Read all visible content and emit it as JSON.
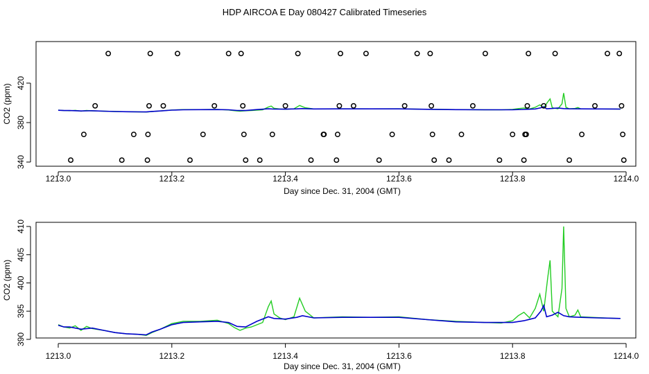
{
  "title": "HDP AIRCOA E  Day 080427  Calibrated Timeseries",
  "colors": {
    "green": "#22cc22",
    "blue": "#0000cc",
    "axis": "#000000"
  },
  "chart_data": [
    {
      "type": "line+scatter",
      "xlabel": "Day since Dec. 31, 2004 (GMT)",
      "ylabel": "CO2 (ppm)",
      "xlim": [
        1213.0,
        1214.0
      ],
      "ylim": [
        340,
        445
      ],
      "x_ticks": [
        {
          "value": 1213.0,
          "label": "1213.0"
        },
        {
          "value": 1213.2,
          "label": "1213.2"
        },
        {
          "value": 1213.4,
          "label": "1213.4"
        },
        {
          "value": 1213.6,
          "label": "1213.6"
        },
        {
          "value": 1213.8,
          "label": "1213.8"
        },
        {
          "value": 1214.0,
          "label": "1214.0"
        }
      ],
      "y_ticks": [
        {
          "value": 340,
          "label": "340"
        },
        {
          "value": 380,
          "label": "380"
        },
        {
          "value": 420,
          "label": "420"
        }
      ],
      "points": [
        {
          "x": 1213.022,
          "y": 342
        },
        {
          "x": 1213.045,
          "y": 368
        },
        {
          "x": 1213.065,
          "y": 397
        },
        {
          "x": 1213.088,
          "y": 450
        },
        {
          "x": 1213.112,
          "y": 342
        },
        {
          "x": 1213.133,
          "y": 368
        },
        {
          "x": 1213.157,
          "y": 342
        },
        {
          "x": 1213.158,
          "y": 368
        },
        {
          "x": 1213.16,
          "y": 397
        },
        {
          "x": 1213.162,
          "y": 450
        },
        {
          "x": 1213.185,
          "y": 397
        },
        {
          "x": 1213.21,
          "y": 450
        },
        {
          "x": 1213.232,
          "y": 342
        },
        {
          "x": 1213.255,
          "y": 368
        },
        {
          "x": 1213.275,
          "y": 397
        },
        {
          "x": 1213.3,
          "y": 450
        },
        {
          "x": 1213.322,
          "y": 450
        },
        {
          "x": 1213.325,
          "y": 397
        },
        {
          "x": 1213.327,
          "y": 368
        },
        {
          "x": 1213.33,
          "y": 342
        },
        {
          "x": 1213.355,
          "y": 342
        },
        {
          "x": 1213.377,
          "y": 368
        },
        {
          "x": 1213.4,
          "y": 397
        },
        {
          "x": 1213.422,
          "y": 450
        },
        {
          "x": 1213.445,
          "y": 342
        },
        {
          "x": 1213.467,
          "y": 368
        },
        {
          "x": 1213.468,
          "y": 368
        },
        {
          "x": 1213.49,
          "y": 342
        },
        {
          "x": 1213.492,
          "y": 368
        },
        {
          "x": 1213.495,
          "y": 397
        },
        {
          "x": 1213.497,
          "y": 450
        },
        {
          "x": 1213.52,
          "y": 397
        },
        {
          "x": 1213.542,
          "y": 450
        },
        {
          "x": 1213.565,
          "y": 342
        },
        {
          "x": 1213.588,
          "y": 368
        },
        {
          "x": 1213.61,
          "y": 397
        },
        {
          "x": 1213.632,
          "y": 450
        },
        {
          "x": 1213.655,
          "y": 450
        },
        {
          "x": 1213.657,
          "y": 397
        },
        {
          "x": 1213.659,
          "y": 368
        },
        {
          "x": 1213.662,
          "y": 342
        },
        {
          "x": 1213.688,
          "y": 342
        },
        {
          "x": 1213.71,
          "y": 368
        },
        {
          "x": 1213.73,
          "y": 397
        },
        {
          "x": 1213.752,
          "y": 450
        },
        {
          "x": 1213.777,
          "y": 342
        },
        {
          "x": 1213.8,
          "y": 368
        },
        {
          "x": 1213.82,
          "y": 342
        },
        {
          "x": 1213.822,
          "y": 368
        },
        {
          "x": 1213.824,
          "y": 368
        },
        {
          "x": 1213.826,
          "y": 397
        },
        {
          "x": 1213.828,
          "y": 450
        },
        {
          "x": 1213.855,
          "y": 397
        },
        {
          "x": 1213.875,
          "y": 450
        },
        {
          "x": 1213.9,
          "y": 342
        },
        {
          "x": 1213.922,
          "y": 368
        },
        {
          "x": 1213.945,
          "y": 397
        },
        {
          "x": 1213.967,
          "y": 450
        },
        {
          "x": 1213.988,
          "y": 450
        },
        {
          "x": 1213.992,
          "y": 397
        },
        {
          "x": 1213.994,
          "y": 368
        },
        {
          "x": 1213.996,
          "y": 342
        }
      ],
      "green_x": [
        1213.0,
        1213.01,
        1213.02,
        1213.03,
        1213.04,
        1213.05,
        1213.06,
        1213.08,
        1213.1,
        1213.12,
        1213.14,
        1213.155,
        1213.165,
        1213.18,
        1213.2,
        1213.22,
        1213.25,
        1213.28,
        1213.3,
        1213.31,
        1213.32,
        1213.33,
        1213.34,
        1213.36,
        1213.37,
        1213.375,
        1213.38,
        1213.39,
        1213.4,
        1213.415,
        1213.425,
        1213.435,
        1213.45,
        1213.5,
        1213.55,
        1213.6,
        1213.65,
        1213.7,
        1213.75,
        1213.78,
        1213.8,
        1213.81,
        1213.82,
        1213.83,
        1213.84,
        1213.848,
        1213.855,
        1213.862,
        1213.866,
        1213.87,
        1213.88,
        1213.887,
        1213.89,
        1213.894,
        1213.9,
        1213.91,
        1213.915,
        1213.92,
        1213.94,
        1213.96,
        1213.99
      ],
      "green_y": [
        392.6,
        392.2,
        392.0,
        392.4,
        391.6,
        392.3,
        391.9,
        391.6,
        391.2,
        391.0,
        390.9,
        390.7,
        391.2,
        391.8,
        392.8,
        393.2,
        393.2,
        393.4,
        392.8,
        392.1,
        391.6,
        392.0,
        392.2,
        393.0,
        395.8,
        396.8,
        394.5,
        393.8,
        393.5,
        394.0,
        397.3,
        395.0,
        393.8,
        394.0,
        393.9,
        394.0,
        393.5,
        393.2,
        393.0,
        392.9,
        393.3,
        394.2,
        394.8,
        393.8,
        395.5,
        398.0,
        395.0,
        401.0,
        404.0,
        395.0,
        394.0,
        399.0,
        410.0,
        395.5,
        394.0,
        394.3,
        395.2,
        394.0,
        393.9,
        393.8,
        393.7
      ],
      "blue_x": [
        1213.0,
        1213.01,
        1213.02,
        1213.04,
        1213.06,
        1213.08,
        1213.1,
        1213.12,
        1213.14,
        1213.155,
        1213.165,
        1213.18,
        1213.2,
        1213.22,
        1213.25,
        1213.28,
        1213.3,
        1213.315,
        1213.33,
        1213.35,
        1213.37,
        1213.38,
        1213.4,
        1213.42,
        1213.43,
        1213.45,
        1213.5,
        1213.55,
        1213.6,
        1213.65,
        1213.7,
        1213.75,
        1213.8,
        1213.82,
        1213.84,
        1213.85,
        1213.855,
        1213.86,
        1213.87,
        1213.88,
        1213.89,
        1213.9,
        1213.92,
        1213.95,
        1213.99
      ],
      "blue_y": [
        392.5,
        392.2,
        392.2,
        391.8,
        392.0,
        391.6,
        391.2,
        391.0,
        390.9,
        390.8,
        391.3,
        391.8,
        392.6,
        393.0,
        393.1,
        393.2,
        393.0,
        392.3,
        392.2,
        393.2,
        394.0,
        393.7,
        393.6,
        393.9,
        394.2,
        393.8,
        393.9,
        393.9,
        393.9,
        393.5,
        393.1,
        393.0,
        393.0,
        393.3,
        393.8,
        395.0,
        396.0,
        394.0,
        394.3,
        394.8,
        394.2,
        394.0,
        393.9,
        393.8,
        393.7
      ]
    },
    {
      "type": "line",
      "xlabel": "Day since Dec. 31, 2004 (GMT)",
      "ylabel": "CO2 (ppm)",
      "xlim": [
        1213.0,
        1214.0
      ],
      "ylim": [
        390,
        410
      ],
      "x_ticks": [
        {
          "value": 1213.0,
          "label": "1213.0"
        },
        {
          "value": 1213.2,
          "label": "1213.2"
        },
        {
          "value": 1213.4,
          "label": "1213.4"
        },
        {
          "value": 1213.6,
          "label": "1213.6"
        },
        {
          "value": 1213.8,
          "label": "1213.8"
        },
        {
          "value": 1214.0,
          "label": "1214.0"
        }
      ],
      "y_ticks": [
        {
          "value": 390,
          "label": "390"
        },
        {
          "value": 395,
          "label": "395"
        },
        {
          "value": 400,
          "label": "400"
        },
        {
          "value": 405,
          "label": "405"
        },
        {
          "value": 410,
          "label": "410"
        }
      ],
      "green_x": [
        1213.0,
        1213.01,
        1213.02,
        1213.03,
        1213.04,
        1213.05,
        1213.06,
        1213.08,
        1213.1,
        1213.12,
        1213.14,
        1213.155,
        1213.165,
        1213.18,
        1213.2,
        1213.22,
        1213.25,
        1213.28,
        1213.3,
        1213.31,
        1213.32,
        1213.33,
        1213.34,
        1213.36,
        1213.37,
        1213.375,
        1213.38,
        1213.39,
        1213.4,
        1213.415,
        1213.425,
        1213.435,
        1213.45,
        1213.5,
        1213.55,
        1213.6,
        1213.65,
        1213.7,
        1213.75,
        1213.78,
        1213.8,
        1213.81,
        1213.82,
        1213.83,
        1213.84,
        1213.848,
        1213.855,
        1213.862,
        1213.866,
        1213.87,
        1213.88,
        1213.887,
        1213.89,
        1213.894,
        1213.9,
        1213.91,
        1213.915,
        1213.92,
        1213.94,
        1213.96,
        1213.99
      ],
      "green_y": [
        392.6,
        392.2,
        392.0,
        392.4,
        391.6,
        392.3,
        391.9,
        391.6,
        391.2,
        391.0,
        390.9,
        390.7,
        391.2,
        391.8,
        392.8,
        393.2,
        393.2,
        393.4,
        392.8,
        392.1,
        391.6,
        392.0,
        392.2,
        393.0,
        395.8,
        396.8,
        394.5,
        393.8,
        393.5,
        394.0,
        397.3,
        395.0,
        393.8,
        394.0,
        393.9,
        394.0,
        393.5,
        393.2,
        393.0,
        392.9,
        393.3,
        394.2,
        394.8,
        393.8,
        395.5,
        398.0,
        395.0,
        401.0,
        404.0,
        395.0,
        394.0,
        399.0,
        410.0,
        395.5,
        394.0,
        394.3,
        395.2,
        394.0,
        393.9,
        393.8,
        393.7
      ],
      "blue_x": [
        1213.0,
        1213.01,
        1213.02,
        1213.04,
        1213.06,
        1213.08,
        1213.1,
        1213.12,
        1213.14,
        1213.155,
        1213.165,
        1213.18,
        1213.2,
        1213.22,
        1213.25,
        1213.28,
        1213.3,
        1213.315,
        1213.33,
        1213.35,
        1213.37,
        1213.38,
        1213.4,
        1213.42,
        1213.43,
        1213.45,
        1213.5,
        1213.55,
        1213.6,
        1213.65,
        1213.7,
        1213.75,
        1213.8,
        1213.82,
        1213.84,
        1213.85,
        1213.855,
        1213.86,
        1213.87,
        1213.88,
        1213.89,
        1213.9,
        1213.92,
        1213.95,
        1213.99
      ],
      "blue_y": [
        392.5,
        392.2,
        392.2,
        391.8,
        392.0,
        391.6,
        391.2,
        391.0,
        390.9,
        390.8,
        391.3,
        391.8,
        392.6,
        393.0,
        393.1,
        393.2,
        393.0,
        392.3,
        392.2,
        393.2,
        394.0,
        393.7,
        393.6,
        393.9,
        394.2,
        393.8,
        393.9,
        393.9,
        393.9,
        393.5,
        393.1,
        393.0,
        393.0,
        393.3,
        393.8,
        395.0,
        396.0,
        394.0,
        394.3,
        394.8,
        394.2,
        394.0,
        393.9,
        393.8,
        393.7
      ]
    }
  ]
}
